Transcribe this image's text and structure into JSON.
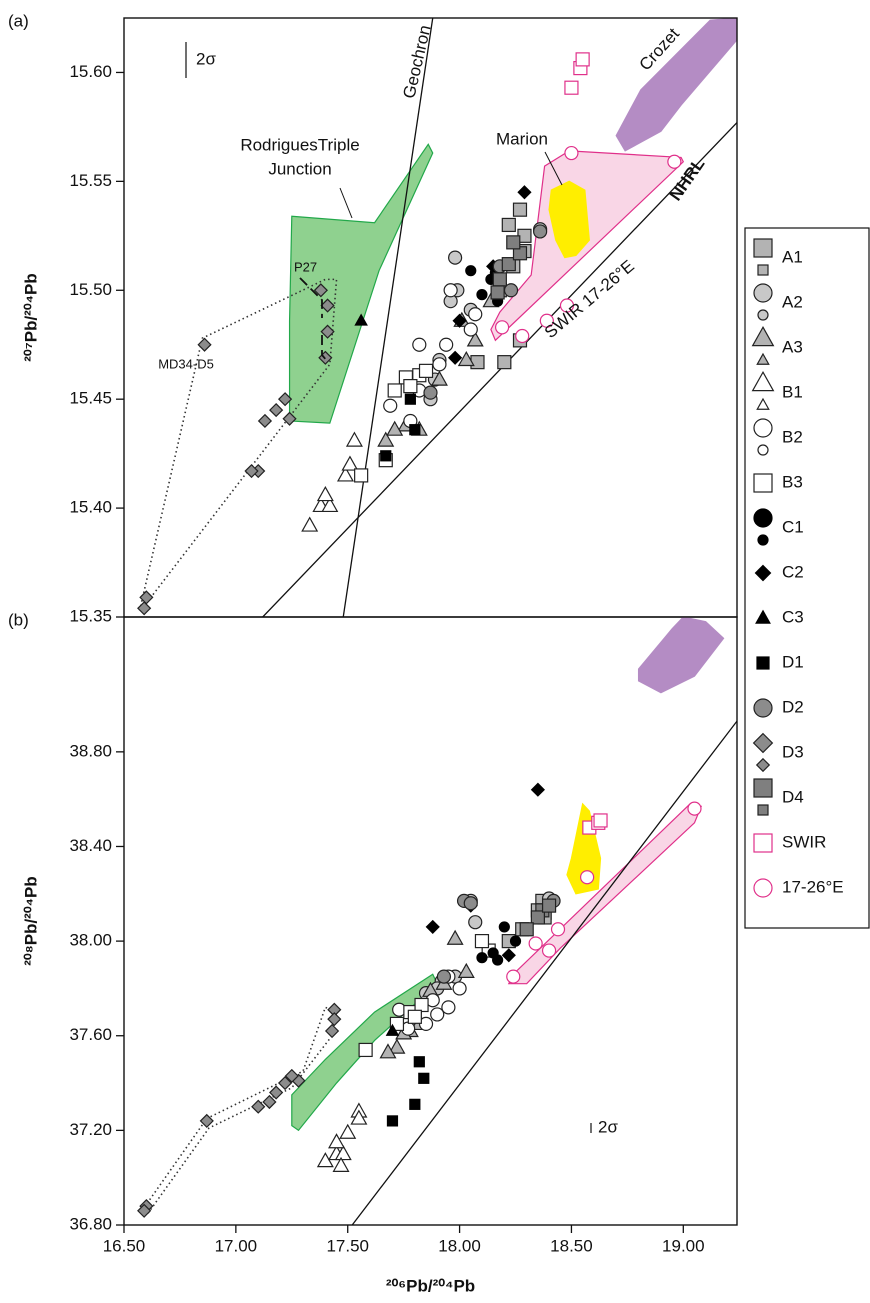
{
  "chart_data": [
    {
      "type": "scatter",
      "title": "(a)",
      "y_label": "²⁰⁷Pb/²⁰⁴Pb",
      "xlim": [
        16.5,
        19.24
      ],
      "ylim": [
        15.35,
        15.625
      ],
      "yticks": [
        15.35,
        {
          "value": 15.4,
          "label": "15.40"
        },
        15.45,
        {
          "value": 15.5,
          "label": "15.50"
        },
        15.55,
        {
          "value": 15.6,
          "label": "15.60"
        }
      ],
      "legend": "right",
      "fields": [
        {
          "label": [
            "RodriguesTriple",
            "Junction"
          ],
          "color": "#8fd18f",
          "edge": "#22a84a",
          "x": [
            17.25,
            17.62,
            17.86,
            17.88,
            17.64,
            17.42,
            17.24,
            17.24
          ],
          "values": [
            15.534,
            15.531,
            15.567,
            15.563,
            15.509,
            15.439,
            15.44,
            15.486
          ]
        },
        {
          "label": [
            "Crozet"
          ],
          "color": "#b48cc4",
          "edge": "#b48cc4",
          "x": [
            18.7,
            18.81,
            19.12,
            19.24,
            19.24,
            18.99,
            18.9,
            18.74
          ],
          "values": [
            15.571,
            15.592,
            15.624,
            15.625,
            15.615,
            15.585,
            15.573,
            15.564
          ]
        },
        {
          "label": [
            "SWIR 17-26°E"
          ],
          "color": "#f9d6e6",
          "edge": "#e0308a",
          "x": [
            18.49,
            18.99,
            19.0,
            18.16,
            18.14,
            18.18,
            18.32,
            18.38
          ],
          "values": [
            15.564,
            15.561,
            15.559,
            15.477,
            15.482,
            15.49,
            15.507,
            15.557
          ]
        },
        {
          "label": [
            "Marion"
          ],
          "color": "#ffee00",
          "edge": "#ffee00",
          "x": [
            18.41,
            18.49,
            18.56,
            18.58,
            18.52,
            18.47,
            18.43,
            18.4
          ],
          "values": [
            15.546,
            15.55,
            15.546,
            15.523,
            15.516,
            15.515,
            15.523,
            15.537
          ]
        },
        {
          "label": [
            "MD34-D5"
          ],
          "color": "none",
          "edge": "#333333",
          "x": [
            16.57,
            16.85,
            17.4,
            17.45,
            17.42,
            16.62
          ],
          "values": [
            15.353,
            15.478,
            15.505,
            15.505,
            15.466,
            15.359
          ]
        }
      ],
      "lines": [
        {
          "label": "Geochron",
          "x": [
            17.48,
            17.88
          ],
          "values": [
            15.35,
            15.625
          ]
        },
        {
          "label": "NHRL",
          "x": [
            17.12,
            19.24
          ],
          "values": [
            15.35,
            15.577
          ]
        }
      ],
      "annotations": [
        "2σ",
        "P27"
      ],
      "series": [
        {
          "name": "A1",
          "marker": "square",
          "color": "#b3b3b3",
          "edge": "#222222",
          "x": [
            18.2,
            18.27,
            18.29,
            18.27,
            18.24,
            18.08,
            18.18,
            18.29,
            18.22
          ],
          "values": [
            15.467,
            15.477,
            15.518,
            15.537,
            15.511,
            15.467,
            15.5,
            15.525,
            15.53
          ]
        },
        {
          "name": "A2",
          "marker": "circle",
          "color": "#c8c8c8",
          "edge": "#222222",
          "x": [
            17.99,
            17.96,
            17.98,
            18.05,
            17.87,
            17.89,
            18.36,
            17.91
          ],
          "values": [
            15.5,
            15.495,
            15.515,
            15.491,
            15.45,
            15.459,
            15.528,
            15.468
          ]
        },
        {
          "name": "A3",
          "marker": "triangle",
          "color": "#b3b3b3",
          "edge": "#222222",
          "x": [
            18.01,
            18.03,
            17.91,
            17.82,
            17.67,
            17.76,
            18.14,
            18.07,
            17.71
          ],
          "values": [
            15.486,
            15.468,
            15.459,
            15.436,
            15.431,
            15.438,
            15.495,
            15.477,
            15.436
          ]
        },
        {
          "name": "B1",
          "marker": "triangle",
          "color": "#ffffff",
          "edge": "#222222",
          "x": [
            17.33,
            17.38,
            17.42,
            17.49,
            17.51,
            17.4,
            17.53
          ],
          "values": [
            15.392,
            15.401,
            15.401,
            15.415,
            15.42,
            15.406,
            15.431
          ]
        },
        {
          "name": "B2",
          "marker": "circle",
          "color": "#ffffff",
          "edge": "#222222",
          "x": [
            17.78,
            17.82,
            17.91,
            17.94,
            17.82,
            18.05,
            18.07,
            17.96,
            17.69
          ],
          "values": [
            15.44,
            15.454,
            15.466,
            15.475,
            15.475,
            15.482,
            15.489,
            15.5,
            15.447
          ]
        },
        {
          "name": "B3",
          "marker": "square",
          "color": "#ffffff",
          "edge": "#222222",
          "x": [
            17.56,
            17.67,
            17.76,
            17.82,
            17.85,
            17.78,
            17.71
          ],
          "values": [
            15.415,
            15.422,
            15.46,
            15.461,
            15.463,
            15.456,
            15.454
          ]
        },
        {
          "name": "C1",
          "marker": "circle",
          "color": "#000000",
          "edge": "#000000",
          "x": [
            18.16,
            18.14,
            18.17,
            18.1,
            18.05
          ],
          "values": [
            15.508,
            15.505,
            15.495,
            15.498,
            15.509
          ]
        },
        {
          "name": "C2",
          "marker": "diamond",
          "color": "#000000",
          "edge": "#000000",
          "x": [
            18.29,
            18.0,
            17.98,
            18.15
          ],
          "values": [
            15.545,
            15.486,
            15.469,
            15.511
          ]
        },
        {
          "name": "C3",
          "marker": "triangle",
          "color": "#000000",
          "edge": "#000000",
          "x": [
            17.56
          ],
          "values": [
            15.486
          ]
        },
        {
          "name": "D1",
          "marker": "square",
          "color": "#000000",
          "edge": "#000000",
          "x": [
            17.8,
            17.67,
            17.78
          ],
          "values": [
            15.436,
            15.424,
            15.45
          ]
        },
        {
          "name": "D2",
          "marker": "circle",
          "color": "#8c8c8c",
          "edge": "#222222",
          "x": [
            18.36,
            18.18,
            18.23,
            17.87
          ],
          "values": [
            15.527,
            15.511,
            15.5,
            15.453
          ]
        },
        {
          "name": "D3",
          "marker": "diamond",
          "color": "#8c8c8c",
          "edge": "#222222",
          "x": [
            17.22,
            17.18,
            17.13,
            17.24,
            17.38,
            17.41,
            17.41,
            17.4,
            16.86,
            17.1,
            17.07,
            16.6,
            16.59
          ],
          "values": [
            15.45,
            15.445,
            15.44,
            15.441,
            15.5,
            15.493,
            15.481,
            15.469,
            15.475,
            15.417,
            15.417,
            15.359,
            15.354
          ]
        },
        {
          "name": "D4",
          "marker": "square",
          "color": "#7f7f7f",
          "edge": "#222222",
          "x": [
            18.18,
            18.22,
            18.17,
            18.27,
            18.24
          ],
          "values": [
            15.505,
            15.512,
            15.499,
            15.517,
            15.522
          ]
        },
        {
          "name": "SWIR",
          "marker": "square",
          "color": "#ffffff",
          "edge": "#e0308a",
          "x": [
            18.5,
            18.54,
            18.55
          ],
          "values": [
            15.593,
            15.602,
            15.606
          ]
        },
        {
          "name": "17-26°E",
          "marker": "circle",
          "color": "#ffffff",
          "edge": "#e0308a",
          "x": [
            18.5,
            18.96,
            18.48,
            18.39,
            18.28,
            18.19
          ],
          "values": [
            15.563,
            15.559,
            15.493,
            15.486,
            15.479,
            15.483
          ]
        }
      ]
    },
    {
      "type": "scatter",
      "title": "(b)",
      "y_label": "²⁰⁸Pb/²⁰⁴Pb",
      "x_label": "²⁰⁶Pb/²⁰⁴Pb",
      "xlim": [
        16.5,
        19.24
      ],
      "ylim": [
        36.8,
        39.37
      ],
      "xticks": [
        {
          "value": 16.5,
          "label": "16.50"
        },
        {
          "value": 17,
          "label": "17.00"
        },
        {
          "value": 17.5,
          "label": "17.50"
        },
        {
          "value": 18,
          "label": "18.00"
        },
        {
          "value": 18.5,
          "label": "18.50"
        },
        {
          "value": 19,
          "label": "19.00"
        }
      ],
      "yticks": [
        {
          "value": 36.8,
          "label": "36.80"
        },
        {
          "value": 37.2,
          "label": "37.20"
        },
        {
          "value": 37.6,
          "label": "37.60"
        },
        {
          "value": 38,
          "label": "38.00"
        },
        {
          "value": 38.4,
          "label": "38.40"
        },
        {
          "value": 38.8,
          "label": "38.80"
        }
      ],
      "fields": [
        {
          "color": "#8fd18f",
          "edge": "#22a84a",
          "x": [
            17.25,
            17.28,
            17.45,
            17.62,
            17.9,
            17.88,
            17.62,
            17.4,
            17.25
          ],
          "values": [
            37.22,
            37.2,
            37.4,
            37.58,
            37.82,
            37.86,
            37.7,
            37.5,
            37.35
          ]
        },
        {
          "color": "#b48cc4",
          "edge": "#b48cc4",
          "x": [
            18.8,
            18.95,
            19.0,
            19.1,
            19.18,
            19.05,
            18.9,
            18.8
          ],
          "values": [
            39.15,
            39.32,
            39.37,
            39.35,
            39.28,
            39.12,
            39.05,
            39.1
          ]
        },
        {
          "color": "#f9d6e6",
          "edge": "#e0308a",
          "x": [
            18.22,
            18.24,
            19.03,
            19.08,
            19.05,
            18.45,
            18.3
          ],
          "values": [
            37.82,
            37.86,
            38.58,
            38.57,
            38.5,
            37.97,
            37.82
          ]
        },
        {
          "color": "#ffee00",
          "edge": "#ffee00",
          "x": [
            18.5,
            18.55,
            18.58,
            18.63,
            18.62,
            18.52,
            18.48
          ],
          "values": [
            38.35,
            38.58,
            38.55,
            38.35,
            38.22,
            38.2,
            38.28
          ]
        },
        {
          "color": "none",
          "edge": "#333333",
          "x": [
            16.58,
            16.87,
            17.3,
            17.4,
            17.45,
            17.43,
            17.25,
            16.88,
            16.6
          ],
          "values": [
            36.86,
            37.25,
            37.45,
            37.72,
            37.7,
            37.6,
            37.38,
            37.21,
            36.84
          ]
        }
      ],
      "lines": [
        {
          "x": [
            17.52,
            19.24
          ],
          "values": [
            36.8,
            38.93
          ]
        }
      ],
      "annotations": [
        "2σ"
      ],
      "series": [
        {
          "marker": "square",
          "color": "#b3b3b3",
          "edge": "#222222",
          "x": [
            18.37,
            18.35,
            18.38,
            18.28,
            18.22,
            18.38
          ],
          "values": [
            38.17,
            38.13,
            38.12,
            38.05,
            38.0,
            38.1
          ]
        },
        {
          "marker": "circle",
          "color": "#c8c8c8",
          "edge": "#222222",
          "x": [
            18.05,
            18.07,
            17.98,
            17.92,
            17.85,
            17.9,
            18.4
          ],
          "values": [
            38.17,
            38.08,
            37.85,
            37.83,
            37.78,
            37.8,
            38.18
          ]
        },
        {
          "marker": "triangle",
          "color": "#b3b3b3",
          "edge": "#222222",
          "x": [
            17.98,
            18.03,
            17.93,
            17.87,
            17.72,
            17.68,
            17.82,
            17.78,
            17.75
          ],
          "values": [
            38.01,
            37.87,
            37.82,
            37.79,
            37.55,
            37.53,
            37.65,
            37.62,
            37.61
          ]
        },
        {
          "marker": "triangle",
          "color": "#ffffff",
          "edge": "#222222",
          "x": [
            17.4,
            17.45,
            17.48,
            17.45,
            17.5,
            17.55,
            17.55,
            17.47
          ],
          "values": [
            37.07,
            37.1,
            37.1,
            37.15,
            37.19,
            37.28,
            37.25,
            37.05
          ]
        },
        {
          "marker": "circle",
          "color": "#ffffff",
          "edge": "#222222",
          "x": [
            17.8,
            17.85,
            17.9,
            17.95,
            17.88,
            17.77,
            17.95,
            18.0,
            17.73
          ],
          "values": [
            37.7,
            37.65,
            37.69,
            37.72,
            37.75,
            37.63,
            37.85,
            37.8,
            37.71
          ]
        },
        {
          "marker": "square",
          "color": "#ffffff",
          "edge": "#222222",
          "x": [
            17.58,
            17.72,
            17.78,
            17.83,
            18.13,
            18.1,
            17.8
          ],
          "values": [
            37.54,
            37.65,
            37.7,
            37.73,
            37.96,
            38.0,
            37.68
          ]
        },
        {
          "marker": "circle",
          "color": "#000000",
          "edge": "#000000",
          "x": [
            18.2,
            18.15,
            18.25,
            18.17,
            18.1
          ],
          "values": [
            38.06,
            37.95,
            38.0,
            37.92,
            37.93
          ]
        },
        {
          "marker": "diamond",
          "color": "#000000",
          "edge": "#000000",
          "x": [
            18.35,
            17.88,
            18.05,
            18.22
          ],
          "values": [
            38.64,
            38.06,
            38.15,
            37.94
          ]
        },
        {
          "marker": "triangle",
          "color": "#000000",
          "edge": "#000000",
          "x": [
            17.7
          ],
          "values": [
            37.62
          ]
        },
        {
          "marker": "square",
          "color": "#000000",
          "edge": "#000000",
          "x": [
            17.82,
            17.84,
            17.8,
            17.7
          ],
          "values": [
            37.49,
            37.42,
            37.31,
            37.24
          ]
        },
        {
          "marker": "circle",
          "color": "#8c8c8c",
          "edge": "#222222",
          "x": [
            18.42,
            18.02,
            18.05,
            17.93
          ],
          "values": [
            38.17,
            38.17,
            38.16,
            37.85
          ]
        },
        {
          "marker": "diamond",
          "color": "#8c8c8c",
          "edge": "#222222",
          "x": [
            17.44,
            17.44,
            17.43,
            17.28,
            17.25,
            17.22,
            17.18,
            17.15,
            17.1,
            16.87,
            16.6,
            16.59
          ],
          "values": [
            37.71,
            37.67,
            37.62,
            37.41,
            37.43,
            37.4,
            37.36,
            37.32,
            37.3,
            37.24,
            36.88,
            36.86
          ]
        },
        {
          "marker": "square",
          "color": "#7f7f7f",
          "edge": "#222222",
          "x": [
            18.37,
            18.35,
            18.3,
            18.4
          ],
          "values": [
            38.13,
            38.1,
            38.05,
            38.15
          ]
        },
        {
          "marker": "square",
          "color": "#ffffff",
          "edge": "#e0308a",
          "x": [
            18.58,
            18.62,
            18.63
          ],
          "values": [
            38.48,
            38.5,
            38.51
          ]
        },
        {
          "marker": "circle",
          "color": "#ffffff",
          "edge": "#e0308a",
          "x": [
            19.05,
            18.57,
            18.44,
            18.4,
            18.34,
            18.24
          ],
          "values": [
            38.56,
            38.27,
            38.05,
            37.96,
            37.99,
            37.85
          ]
        }
      ]
    }
  ]
}
